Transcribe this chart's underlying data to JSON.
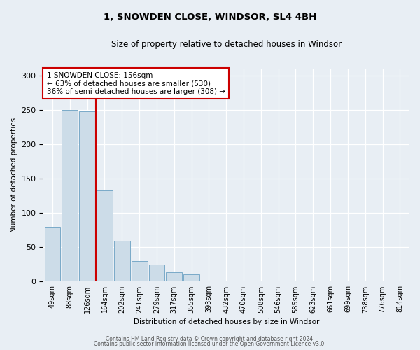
{
  "title": "1, SNOWDEN CLOSE, WINDSOR, SL4 4BH",
  "subtitle": "Size of property relative to detached houses in Windsor",
  "xlabel": "Distribution of detached houses by size in Windsor",
  "ylabel": "Number of detached properties",
  "bar_labels": [
    "49sqm",
    "88sqm",
    "126sqm",
    "164sqm",
    "202sqm",
    "241sqm",
    "279sqm",
    "317sqm",
    "355sqm",
    "393sqm",
    "432sqm",
    "470sqm",
    "508sqm",
    "546sqm",
    "585sqm",
    "623sqm",
    "661sqm",
    "699sqm",
    "738sqm",
    "776sqm",
    "814sqm"
  ],
  "bar_values": [
    80,
    250,
    248,
    133,
    60,
    30,
    25,
    14,
    11,
    0,
    0,
    0,
    0,
    1,
    0,
    1,
    0,
    0,
    0,
    1,
    0
  ],
  "bar_color": "#ccdce8",
  "bar_edge_color": "#7aaac8",
  "marker_line_color": "#cc0000",
  "annotation_line1": "1 SNOWDEN CLOSE: 156sqm",
  "annotation_line2": "← 63% of detached houses are smaller (530)",
  "annotation_line3": "36% of semi-detached houses are larger (308) →",
  "box_facecolor": "#ffffff",
  "box_edgecolor": "#cc0000",
  "ylim": [
    0,
    310
  ],
  "yticks": [
    0,
    50,
    100,
    150,
    200,
    250,
    300
  ],
  "footer1": "Contains HM Land Registry data © Crown copyright and database right 2024.",
  "footer2": "Contains public sector information licensed under the Open Government Licence v3.0.",
  "background_color": "#e8eef4",
  "plot_bg_color": "#e8eef4"
}
